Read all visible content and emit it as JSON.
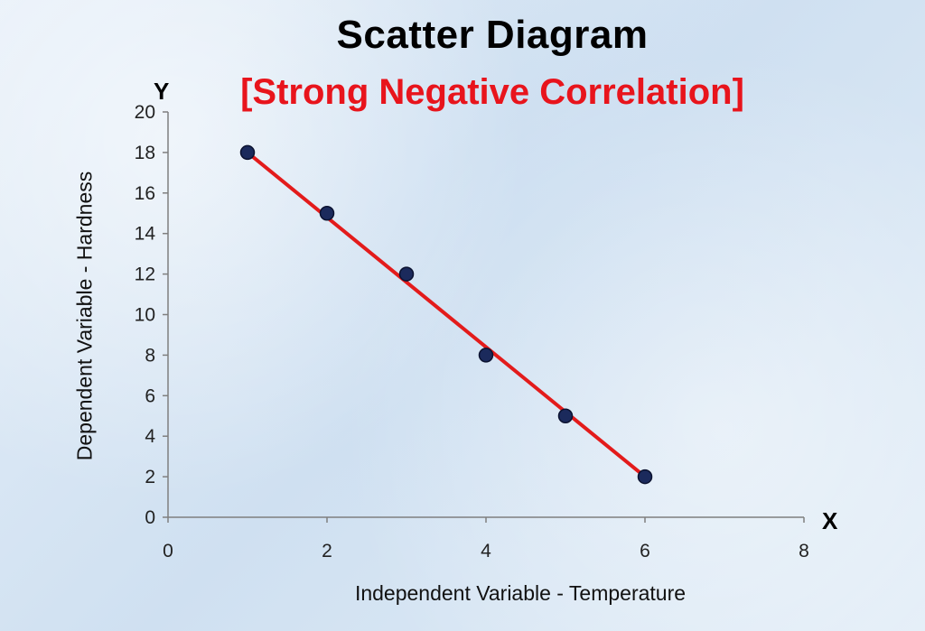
{
  "chart_data": {
    "type": "scatter",
    "title": "Scatter Diagram",
    "subtitle": "[Strong Negative Correlation]",
    "xlabel": "Independent Variable - Temperature",
    "ylabel": "Dependent Variable - Hardness",
    "x_axis_letter": "X",
    "y_axis_letter": "Y",
    "xlim": [
      0,
      8
    ],
    "ylim": [
      0,
      20
    ],
    "x_ticks": [
      0,
      2,
      4,
      6,
      8
    ],
    "y_ticks": [
      0,
      2,
      4,
      6,
      8,
      10,
      12,
      14,
      16,
      18,
      20
    ],
    "grid": false,
    "series": [
      {
        "x": [
          1,
          2,
          3,
          4,
          5,
          6
        ],
        "y": [
          18,
          15,
          12,
          8,
          5,
          2
        ]
      }
    ],
    "trend_line": {
      "x": [
        1,
        6
      ],
      "y": [
        18,
        2
      ]
    }
  },
  "colors": {
    "title": "#000000",
    "subtitle": "#e8141c",
    "marker_fill": "#1b2a5c",
    "marker_stroke": "#0b1230",
    "trend_line": "#e31b1b",
    "axis": "#7f7f7f"
  }
}
